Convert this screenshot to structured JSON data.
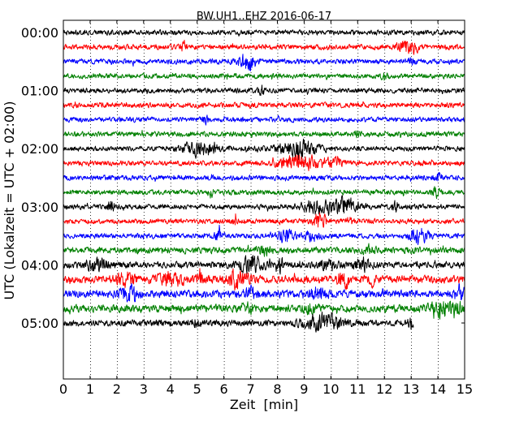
{
  "chart_data": {
    "type": "line",
    "title": "BW.UH1..EHZ 2016-06-17",
    "xlabel": "Zeit  [min]",
    "ylabel": "UTC (Lokalzeit = UTC + 02:00)",
    "xlim": [
      0,
      15
    ],
    "x_ticks": [
      0,
      1,
      2,
      3,
      4,
      5,
      6,
      7,
      8,
      9,
      10,
      11,
      12,
      13,
      14,
      15
    ],
    "y_tick_labels": [
      "00:00",
      "01:00",
      "02:00",
      "03:00",
      "04:00",
      "05:00"
    ],
    "row_interval_min": 15,
    "rows_per_hour": 4,
    "grid": "x-dotted",
    "colors": [
      "#000000",
      "#ff0000",
      "#0000ff",
      "#008000"
    ],
    "rows": [
      {
        "start": "00:00",
        "color": "#000000",
        "end_min": 15,
        "noise": 4,
        "events": []
      },
      {
        "start": "00:15",
        "color": "#ff0000",
        "end_min": 15,
        "noise": 4,
        "events": [
          [
            12.9,
            0.35,
            12
          ],
          [
            4.5,
            0.1,
            7
          ]
        ]
      },
      {
        "start": "00:30",
        "color": "#0000ff",
        "end_min": 15,
        "noise": 4,
        "events": [
          [
            6.85,
            0.35,
            12
          ],
          [
            13.0,
            0.1,
            7
          ]
        ]
      },
      {
        "start": "00:45",
        "color": "#008000",
        "end_min": 15,
        "noise": 4,
        "events": [
          [
            12.0,
            0.1,
            7
          ]
        ]
      },
      {
        "start": "01:00",
        "color": "#000000",
        "end_min": 15,
        "noise": 4,
        "events": [
          [
            7.4,
            0.1,
            7
          ]
        ]
      },
      {
        "start": "01:15",
        "color": "#ff0000",
        "end_min": 15,
        "noise": 4,
        "events": []
      },
      {
        "start": "01:30",
        "color": "#0000ff",
        "end_min": 15,
        "noise": 4,
        "events": [
          [
            5.3,
            0.1,
            6
          ]
        ]
      },
      {
        "start": "01:45",
        "color": "#008000",
        "end_min": 15,
        "noise": 4,
        "events": [
          [
            11.0,
            0.1,
            6
          ]
        ]
      },
      {
        "start": "02:00",
        "color": "#000000",
        "end_min": 15,
        "noise": 4,
        "events": [
          [
            5.1,
            0.6,
            11
          ],
          [
            8.8,
            0.7,
            12
          ]
        ]
      },
      {
        "start": "02:15",
        "color": "#ff0000",
        "end_min": 15,
        "noise": 4,
        "events": [
          [
            8.9,
            0.8,
            10
          ],
          [
            10.1,
            0.3,
            6
          ]
        ]
      },
      {
        "start": "02:30",
        "color": "#0000ff",
        "end_min": 15,
        "noise": 4,
        "events": [
          [
            14.0,
            0.15,
            6
          ]
        ]
      },
      {
        "start": "02:45",
        "color": "#008000",
        "end_min": 15,
        "noise": 4,
        "events": [
          [
            13.9,
            0.15,
            7
          ],
          [
            5.5,
            0.1,
            6
          ]
        ]
      },
      {
        "start": "03:00",
        "color": "#000000",
        "end_min": 15,
        "noise": 4,
        "events": [
          [
            9.5,
            0.6,
            10
          ],
          [
            10.5,
            0.5,
            12
          ],
          [
            12.4,
            0.1,
            7
          ],
          [
            1.8,
            0.15,
            8
          ]
        ]
      },
      {
        "start": "03:15",
        "color": "#ff0000",
        "end_min": 15,
        "noise": 4,
        "events": [
          [
            9.6,
            0.25,
            11
          ],
          [
            6.4,
            0.1,
            6
          ],
          [
            10.7,
            0.1,
            6
          ]
        ]
      },
      {
        "start": "03:30",
        "color": "#0000ff",
        "end_min": 15,
        "noise": 4,
        "events": [
          [
            8.3,
            0.3,
            11
          ],
          [
            13.3,
            0.35,
            11
          ],
          [
            5.8,
            0.15,
            7
          ],
          [
            9.3,
            0.3,
            7
          ]
        ]
      },
      {
        "start": "03:45",
        "color": "#008000",
        "end_min": 15,
        "noise": 5,
        "events": [
          [
            7.5,
            0.2,
            7
          ],
          [
            11.5,
            0.2,
            7
          ]
        ]
      },
      {
        "start": "04:00",
        "color": "#000000",
        "end_min": 15,
        "noise": 5,
        "events": [
          [
            1.3,
            0.4,
            10
          ],
          [
            7.0,
            0.5,
            10
          ],
          [
            8.1,
            0.1,
            13
          ],
          [
            11.2,
            0.3,
            9
          ],
          [
            9.9,
            0.3,
            7
          ]
        ]
      },
      {
        "start": "04:15",
        "color": "#ff0000",
        "end_min": 15,
        "noise": 6,
        "events": [
          [
            2.3,
            0.3,
            10
          ],
          [
            4.0,
            0.5,
            9
          ],
          [
            5.1,
            0.1,
            12
          ],
          [
            6.5,
            0.4,
            11
          ],
          [
            10.5,
            0.2,
            12
          ],
          [
            11.5,
            0.15,
            7
          ]
        ]
      },
      {
        "start": "04:30",
        "color": "#0000ff",
        "end_min": 15,
        "noise": 6,
        "events": [
          [
            2.4,
            0.3,
            11
          ],
          [
            7.0,
            0.2,
            9
          ],
          [
            9.5,
            0.3,
            9
          ],
          [
            14.8,
            0.2,
            11
          ]
        ]
      },
      {
        "start": "04:45",
        "color": "#008000",
        "end_min": 15,
        "noise": 6,
        "events": [
          [
            14.4,
            0.6,
            11
          ],
          [
            14.65,
            0.05,
            18
          ],
          [
            9.2,
            0.2,
            8
          ],
          [
            6.9,
            0.2,
            7
          ]
        ]
      },
      {
        "start": "05:00",
        "color": "#000000",
        "end_min": 13.1,
        "noise": 5,
        "events": [
          [
            9.7,
            0.7,
            12
          ],
          [
            13.0,
            0.1,
            8
          ],
          [
            5.0,
            0.15,
            6
          ]
        ]
      }
    ]
  }
}
